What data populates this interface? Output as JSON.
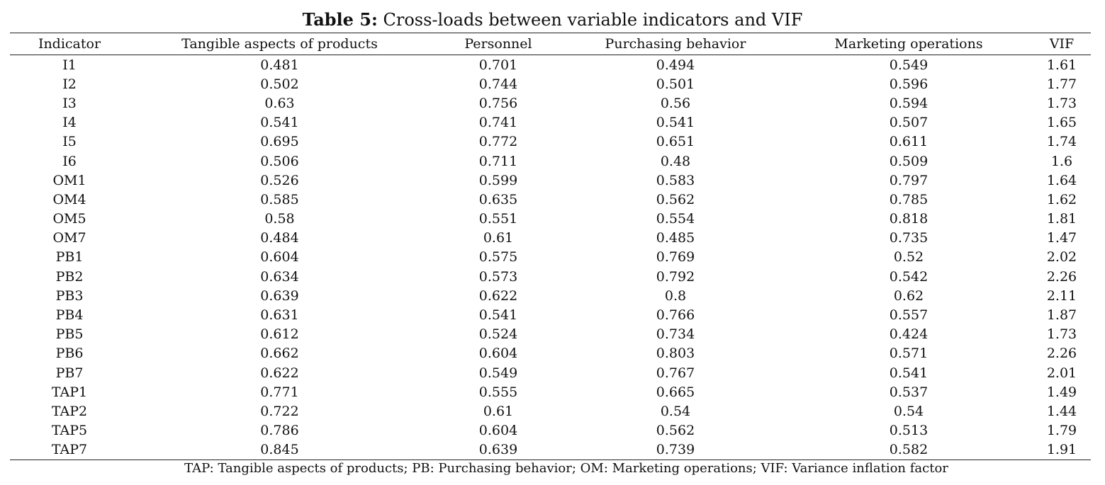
{
  "caption": {
    "label": "Table 5:",
    "text": "Cross-loads between variable indicators and VIF"
  },
  "table": {
    "columns": [
      "Indicator",
      "Tangible aspects of products",
      "Personnel",
      "Purchasing behavior",
      "Marketing operations",
      "VIF"
    ],
    "rows": [
      [
        "I1",
        "0.481",
        "0.701",
        "0.494",
        "0.549",
        "1.61"
      ],
      [
        "I2",
        "0.502",
        "0.744",
        "0.501",
        "0.596",
        "1.77"
      ],
      [
        "I3",
        "0.63",
        "0.756",
        "0.56",
        "0.594",
        "1.73"
      ],
      [
        "I4",
        "0.541",
        "0.741",
        "0.541",
        "0.507",
        "1.65"
      ],
      [
        "I5",
        "0.695",
        "0.772",
        "0.651",
        "0.611",
        "1.74"
      ],
      [
        "I6",
        "0.506",
        "0.711",
        "0.48",
        "0.509",
        "1.6"
      ],
      [
        "OM1",
        "0.526",
        "0.599",
        "0.583",
        "0.797",
        "1.64"
      ],
      [
        "OM4",
        "0.585",
        "0.635",
        "0.562",
        "0.785",
        "1.62"
      ],
      [
        "OM5",
        "0.58",
        "0.551",
        "0.554",
        "0.818",
        "1.81"
      ],
      [
        "OM7",
        "0.484",
        "0.61",
        "0.485",
        "0.735",
        "1.47"
      ],
      [
        "PB1",
        "0.604",
        "0.575",
        "0.769",
        "0.52",
        "2.02"
      ],
      [
        "PB2",
        "0.634",
        "0.573",
        "0.792",
        "0.542",
        "2.26"
      ],
      [
        "PB3",
        "0.639",
        "0.622",
        "0.8",
        "0.62",
        "2.11"
      ],
      [
        "PB4",
        "0.631",
        "0.541",
        "0.766",
        "0.557",
        "1.87"
      ],
      [
        "PB5",
        "0.612",
        "0.524",
        "0.734",
        "0.424",
        "1.73"
      ],
      [
        "PB6",
        "0.662",
        "0.604",
        "0.803",
        "0.571",
        "2.26"
      ],
      [
        "PB7",
        "0.622",
        "0.549",
        "0.767",
        "0.541",
        "2.01"
      ],
      [
        "TAP1",
        "0.771",
        "0.555",
        "0.665",
        "0.537",
        "1.49"
      ],
      [
        "TAP2",
        "0.722",
        "0.61",
        "0.54",
        "0.54",
        "1.44"
      ],
      [
        "TAP5",
        "0.786",
        "0.604",
        "0.562",
        "0.513",
        "1.79"
      ],
      [
        "TAP7",
        "0.845",
        "0.639",
        "0.739",
        "0.582",
        "1.91"
      ]
    ]
  },
  "footnote": "TAP: Tangible aspects of products; PB: Purchasing behavior; OM: Marketing operations; VIF: Variance inflation factor"
}
